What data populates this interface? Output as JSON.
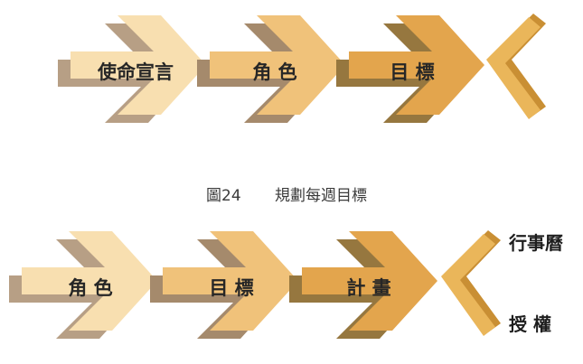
{
  "colors": {
    "light": "#f8dfb0",
    "light_shadow": "#b79f85",
    "mid": "#f0c27a",
    "mid_shadow": "#a58a6c",
    "deep": "#e3a54d",
    "deep_shadow": "#96773f",
    "bracket": "#eab65a",
    "bracket_shadow": "#c98f34"
  },
  "top_flow": {
    "steps": [
      "使命宣言",
      "角 色",
      "目 標"
    ]
  },
  "caption": {
    "figure": "圖24",
    "title": "規劃每週目標"
  },
  "bottom_flow": {
    "steps": [
      "角 色",
      "目 標",
      "計 畫"
    ],
    "outputs": [
      "行事曆",
      "授 權"
    ]
  }
}
